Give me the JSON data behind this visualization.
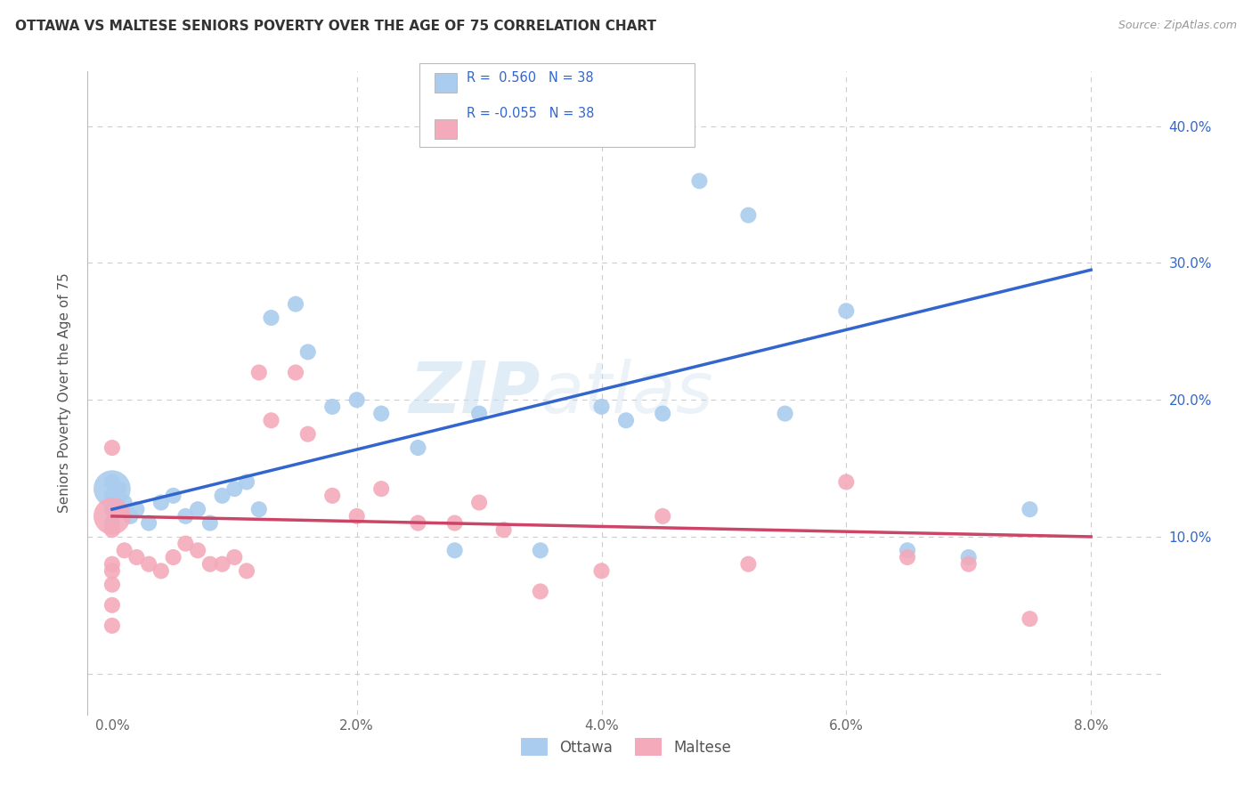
{
  "title": "OTTAWA VS MALTESE SENIORS POVERTY OVER THE AGE OF 75 CORRELATION CHART",
  "source": "Source: ZipAtlas.com",
  "ylabel": "Seniors Poverty Over the Age of 75",
  "xlabel_ticks": [
    "0.0%",
    "2.0%",
    "4.0%",
    "6.0%",
    "8.0%"
  ],
  "xlabel_vals": [
    0.0,
    2.0,
    4.0,
    6.0,
    8.0
  ],
  "ylim": [
    -3.0,
    44.0
  ],
  "xlim": [
    -0.2,
    8.6
  ],
  "ytick_vals": [
    10.0,
    20.0,
    30.0,
    40.0
  ],
  "ytick_labels": [
    "10.0%",
    "20.0%",
    "30.0%",
    "40.0%"
  ],
  "ottawa_color": "#aaccee",
  "maltese_color": "#f4aabb",
  "ottawa_line_color": "#3366cc",
  "maltese_line_color": "#cc4466",
  "R_ottawa": 0.56,
  "N_ottawa": 38,
  "R_maltese": -0.055,
  "N_maltese": 38,
  "watermark_zip": "ZIP",
  "watermark_atlas": "atlas",
  "bg_color": "#ffffff",
  "grid_color": "#cccccc",
  "ottawa_x": [
    0.05,
    0.1,
    0.15,
    0.2,
    0.3,
    0.4,
    0.5,
    0.6,
    0.7,
    0.8,
    0.9,
    1.0,
    1.1,
    1.2,
    1.3,
    1.5,
    1.6,
    1.8,
    2.0,
    2.2,
    2.5,
    2.8,
    3.0,
    3.5,
    4.0,
    4.2,
    4.5,
    4.8,
    5.2,
    5.5,
    6.0,
    6.5,
    7.0,
    7.5,
    0.0,
    0.0,
    0.0,
    0.0
  ],
  "ottawa_y": [
    13.5,
    12.5,
    11.5,
    12.0,
    11.0,
    12.5,
    13.0,
    11.5,
    12.0,
    11.0,
    13.0,
    13.5,
    14.0,
    12.0,
    26.0,
    27.0,
    23.5,
    19.5,
    20.0,
    19.0,
    16.5,
    9.0,
    19.0,
    9.0,
    19.5,
    18.5,
    19.0,
    36.0,
    33.5,
    19.0,
    26.5,
    9.0,
    8.5,
    12.0,
    14.0,
    13.0,
    12.0,
    11.0
  ],
  "maltese_x": [
    0.05,
    0.1,
    0.2,
    0.3,
    0.4,
    0.5,
    0.6,
    0.7,
    0.8,
    0.9,
    1.0,
    1.1,
    1.2,
    1.3,
    1.5,
    1.6,
    1.8,
    2.0,
    2.2,
    2.5,
    2.8,
    3.0,
    3.2,
    3.5,
    4.0,
    4.5,
    5.2,
    6.0,
    6.5,
    7.0,
    7.5,
    0.0,
    0.0,
    0.0,
    0.0,
    0.0,
    0.0,
    0.0
  ],
  "maltese_y": [
    12.0,
    9.0,
    8.5,
    8.0,
    7.5,
    8.5,
    9.5,
    9.0,
    8.0,
    8.0,
    8.5,
    7.5,
    22.0,
    18.5,
    22.0,
    17.5,
    13.0,
    11.5,
    13.5,
    11.0,
    11.0,
    12.5,
    10.5,
    6.0,
    7.5,
    11.5,
    8.0,
    14.0,
    8.5,
    8.0,
    4.0,
    10.5,
    5.0,
    16.5,
    3.5,
    7.5,
    6.5,
    8.0
  ],
  "ottawa_large_x": [
    0.0
  ],
  "ottawa_large_y": [
    13.5
  ],
  "maltese_large_x": [
    0.0
  ],
  "maltese_large_y": [
    11.5
  ],
  "blue_line_x0": 0.0,
  "blue_line_y0": 12.0,
  "blue_line_x1": 8.0,
  "blue_line_y1": 29.5,
  "pink_line_x0": 0.0,
  "pink_line_y0": 11.5,
  "pink_line_x1": 8.0,
  "pink_line_y1": 10.0
}
